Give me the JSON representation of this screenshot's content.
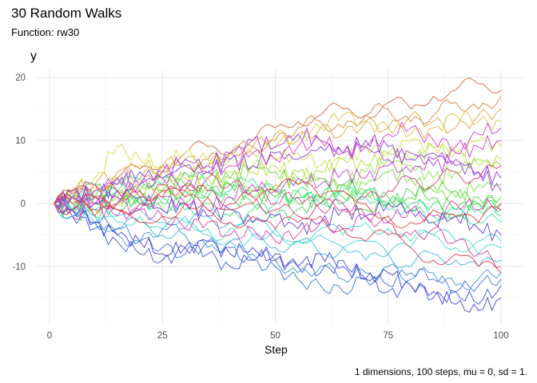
{
  "chart_data": {
    "type": "line",
    "title": "30 Random Walks",
    "subtitle": "Function: rw30",
    "xlabel": "Step",
    "ylabel": "y",
    "caption": "1 dimensions, 100 steps, mu = 0, sd = 1.",
    "xlim": [
      -3,
      104
    ],
    "ylim": [
      -19,
      21
    ],
    "xticks": [
      0,
      25,
      50,
      75,
      100
    ],
    "yticks": [
      -10,
      0,
      10,
      20
    ],
    "grid": true,
    "legend": "none",
    "x": [
      1,
      5,
      10,
      15,
      20,
      25,
      30,
      35,
      40,
      45,
      50,
      55,
      60,
      65,
      70,
      75,
      80,
      85,
      90,
      95,
      100
    ],
    "series": [
      {
        "values": [
          0,
          1.5,
          3,
          4,
          5.5,
          6,
          8,
          9,
          8,
          10,
          12,
          13,
          14,
          15,
          14,
          16,
          15,
          17,
          18,
          19,
          18
        ]
      },
      {
        "values": [
          0,
          -1,
          1,
          2,
          3,
          5,
          6,
          7,
          8,
          9,
          10,
          12,
          13,
          12,
          14,
          15,
          13,
          14,
          16,
          15,
          17
        ]
      },
      {
        "values": [
          0,
          2,
          3,
          5,
          4,
          6,
          7,
          6,
          8,
          9,
          11,
          10,
          12,
          11,
          13,
          12,
          14,
          13,
          12,
          14,
          15
        ]
      },
      {
        "values": [
          0,
          1,
          2,
          4,
          6,
          5,
          4,
          6,
          7,
          8,
          9,
          11,
          12,
          14,
          13,
          12,
          11,
          12,
          14,
          13,
          13
        ]
      },
      {
        "values": [
          0,
          2,
          4,
          9,
          7,
          6,
          8,
          7,
          5,
          6,
          7,
          8,
          6,
          7,
          9,
          8,
          10,
          9,
          8,
          10,
          9
        ]
      },
      {
        "values": [
          0,
          1,
          -1,
          0,
          2,
          3,
          5,
          4,
          3,
          5,
          6,
          4,
          5,
          7,
          6,
          8,
          7,
          9,
          8,
          6,
          7
        ]
      },
      {
        "values": [
          0,
          -1,
          0,
          1,
          3,
          2,
          1,
          3,
          4,
          2,
          3,
          5,
          4,
          3,
          5,
          7,
          6,
          4,
          5,
          7,
          6
        ]
      },
      {
        "values": [
          0,
          1,
          2,
          1,
          0,
          2,
          3,
          5,
          4,
          6,
          5,
          3,
          4,
          2,
          3,
          5,
          4,
          2,
          1,
          3,
          3
        ]
      },
      {
        "values": [
          0,
          -1,
          1,
          3,
          2,
          4,
          3,
          2,
          3,
          1,
          2,
          0,
          1,
          3,
          2,
          0,
          1,
          3,
          2,
          0,
          1
        ]
      },
      {
        "values": [
          0,
          1,
          0,
          -1,
          1,
          0,
          2,
          1,
          3,
          2,
          1,
          2,
          0,
          1,
          -1,
          0,
          2,
          1,
          -1,
          1,
          0
        ]
      },
      {
        "values": [
          0,
          -1,
          -2,
          0,
          1,
          -1,
          0,
          2,
          1,
          0,
          -2,
          -1,
          1,
          0,
          2,
          1,
          -1,
          0,
          -2,
          0,
          -1
        ]
      },
      {
        "values": [
          0,
          0,
          1,
          2,
          0,
          1,
          -1,
          0,
          -2,
          -1,
          0,
          2,
          1,
          3,
          2,
          0,
          -1,
          -3,
          -2,
          -1,
          -2
        ]
      },
      {
        "values": [
          0,
          1,
          3,
          2,
          4,
          3,
          5,
          3,
          2,
          4,
          2,
          1,
          0,
          2,
          1,
          -1,
          0,
          -2,
          -1,
          -3,
          -3
        ]
      },
      {
        "values": [
          0,
          -2,
          -1,
          -3,
          -2,
          -4,
          -3,
          -5,
          -4,
          -3,
          -5,
          -6,
          -4,
          -5,
          -3,
          -4,
          -6,
          -5,
          -7,
          -6,
          -6
        ]
      },
      {
        "values": [
          0,
          -1,
          -3,
          -2,
          -1,
          -3,
          -2,
          -4,
          -6,
          -5,
          -4,
          -6,
          -5,
          -7,
          -6,
          -8,
          -7,
          -5,
          -6,
          -8,
          -7
        ]
      },
      {
        "values": [
          0,
          -1,
          -2,
          -4,
          -3,
          -5,
          -4,
          -2,
          -3,
          -5,
          -7,
          -6,
          -8,
          -7,
          -9,
          -8,
          -10,
          -8,
          -9,
          -10,
          -9
        ]
      },
      {
        "values": [
          0,
          -2,
          -3,
          -5,
          -6,
          -4,
          -5,
          -7,
          -6,
          -8,
          -9,
          -11,
          -10,
          -12,
          -11,
          -10,
          -12,
          -11,
          -13,
          -12,
          -11
        ]
      },
      {
        "values": [
          0,
          -1,
          -3,
          -4,
          -6,
          -7,
          -8,
          -6,
          -7,
          -9,
          -10,
          -12,
          -13,
          -14,
          -12,
          -13,
          -11,
          -12,
          -14,
          -13,
          -12
        ]
      },
      {
        "values": [
          0,
          -2,
          -4,
          -6,
          -8,
          -9,
          -7,
          -8,
          -10,
          -9,
          -8,
          -10,
          -11,
          -9,
          -12,
          -14,
          -13,
          -15,
          -14,
          -16,
          -13
        ]
      },
      {
        "values": [
          0,
          -1,
          -3,
          -5,
          -6,
          -8,
          -7,
          -6,
          -8,
          -7,
          -9,
          -10,
          -8,
          -10,
          -12,
          -11,
          -13,
          -14,
          -16,
          -17,
          -15
        ]
      },
      {
        "values": [
          0,
          1,
          0,
          2,
          1,
          -1,
          0,
          -2,
          -1,
          -3,
          -2,
          -4,
          -3,
          -1,
          -2,
          0,
          -1,
          -3,
          -2,
          -4,
          -5
        ]
      },
      {
        "values": [
          0,
          2,
          1,
          3,
          5,
          4,
          6,
          5,
          7,
          6,
          8,
          7,
          9,
          8,
          10,
          9,
          7,
          8,
          6,
          5,
          4
        ]
      },
      {
        "values": [
          0,
          1,
          2,
          4,
          3,
          5,
          7,
          6,
          8,
          10,
          9,
          11,
          10,
          8,
          9,
          7,
          8,
          6,
          7,
          5,
          2
        ]
      },
      {
        "values": [
          0,
          -1,
          0,
          -2,
          -1,
          1,
          0,
          -1,
          1,
          3,
          2,
          4,
          3,
          5,
          4,
          6,
          5,
          7,
          8,
          9,
          10
        ]
      },
      {
        "values": [
          0,
          1,
          0,
          1,
          3,
          4,
          3,
          5,
          6,
          8,
          7,
          9,
          10,
          8,
          9,
          11,
          12,
          10,
          9,
          11,
          12
        ]
      },
      {
        "values": [
          0,
          -2,
          -1,
          0,
          -1,
          -2,
          -4,
          -3,
          -5,
          -4,
          -6,
          -5,
          -3,
          -4,
          -2,
          -3,
          -1,
          -2,
          0,
          -1,
          0
        ]
      },
      {
        "values": [
          0,
          1,
          3,
          2,
          1,
          3,
          2,
          4,
          3,
          2,
          0,
          1,
          -1,
          0,
          -2,
          -3,
          -5,
          -4,
          -6,
          -8,
          -10
        ]
      },
      {
        "values": [
          0,
          -1,
          1,
          0,
          2,
          1,
          3,
          2,
          0,
          1,
          -1,
          -2,
          0,
          -1,
          1,
          2,
          4,
          3,
          5,
          4,
          6
        ]
      },
      {
        "values": [
          0,
          2,
          1,
          -1,
          0,
          2,
          1,
          -1,
          -3,
          -2,
          -4,
          -3,
          -2,
          -4,
          -6,
          -5,
          -7,
          -9,
          -8,
          -10,
          -11
        ]
      },
      {
        "values": [
          0,
          0,
          -2,
          -1,
          -3,
          -2,
          0,
          1,
          -1,
          0,
          2,
          3,
          1,
          2,
          0,
          -2,
          -3,
          -1,
          -2,
          -3,
          -1
        ]
      }
    ]
  }
}
